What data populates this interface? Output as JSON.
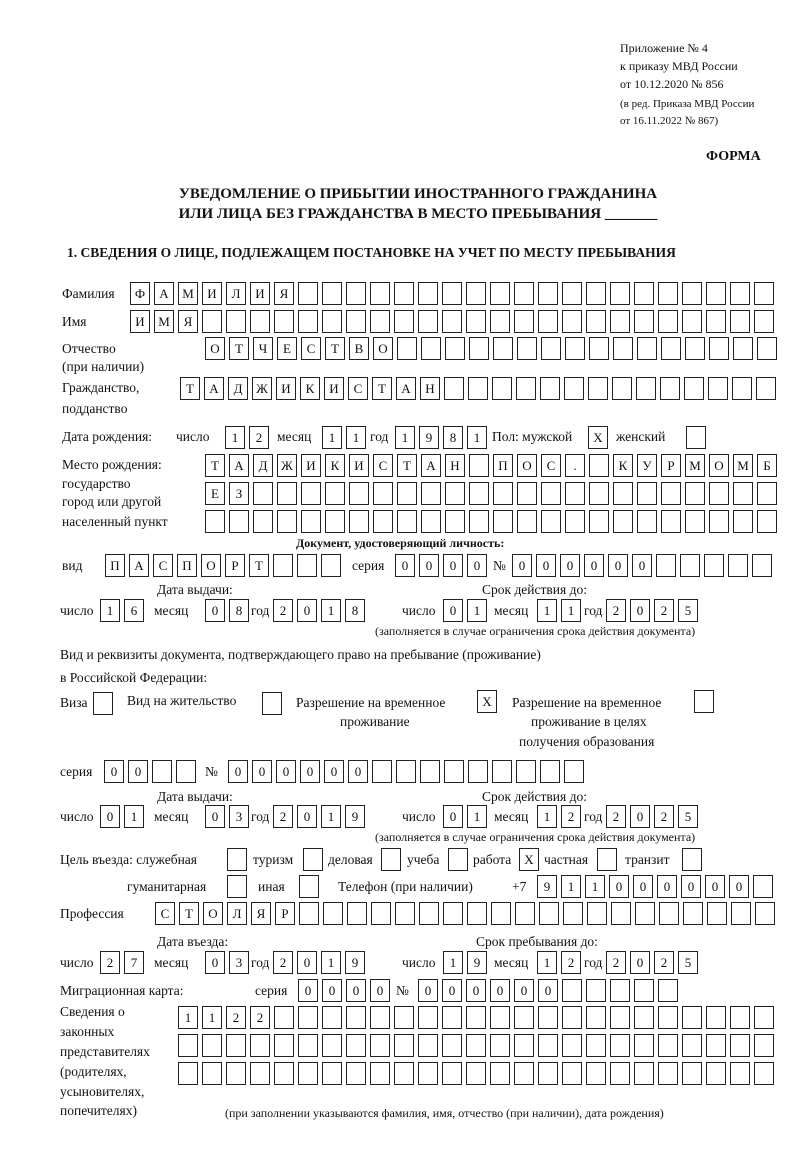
{
  "header": {
    "line1": "Приложение № 4",
    "line2": "к приказу МВД России",
    "line3": "от 10.12.2020 № 856",
    "line4": "(в ред. Приказа МВД России",
    "line5": "от 16.11.2022 № 867)",
    "forma": "ФОРМА"
  },
  "title": {
    "line1": "УВЕДОМЛЕНИЕ О ПРИБЫТИИ ИНОСТРАННОГО ГРАЖДАНИНА",
    "line2": "ИЛИ ЛИЦА БЕЗ ГРАЖДАНСТВА В МЕСТО ПРЕБЫВАНИЯ _______"
  },
  "section1": "1. СВЕДЕНИЯ О ЛИЦЕ, ПОДЛЕЖАЩЕМ ПОСТАНОВКЕ НА УЧЕТ ПО МЕСТУ ПРЕБЫВАНИЯ",
  "labels": {
    "surname": "Фамилия",
    "name": "Имя",
    "patronymic": "Отчество",
    "patronymic2": "(при наличии)",
    "citizenship": "Гражданство,",
    "citizenship2": "подданство",
    "birth_date": "Дата рождения:",
    "day": "число",
    "month": "месяц",
    "year": "год",
    "sex": "Пол: мужской",
    "female": "женский",
    "birthplace1": "Место рождения:",
    "birthplace2": "государство",
    "birthplace3": "город или другой",
    "birthplace4": "населенный пункт",
    "id_doc": "Документ, удостоверяющий личность:",
    "kind": "вид",
    "series": "серия",
    "number": "№",
    "issue_date": "Дата выдачи:",
    "valid_until": "Срок действия до:",
    "valid_note": "(заполняется в случае ограничения срока действия документа)",
    "right_doc1": "Вид и реквизиты документа, подтверждающего право на пребывание (проживание)",
    "right_doc2": "в Российской Федерации:",
    "visa": "Виза",
    "residence": "Вид на жительство",
    "temp_res1": "Разрешение на временное",
    "temp_res2": "проживание",
    "temp_edu1": "Разрешение на временное",
    "temp_edu2": "проживание в целях",
    "temp_edu3": "получения образования",
    "purpose": "Цель въезда: служебная",
    "tourism": "туризм",
    "business": "деловая",
    "study": "учеба",
    "work": "работа",
    "private": "частная",
    "transit": "транзит",
    "humanitarian": "гуманитарная",
    "other": "иная",
    "phone": "Телефон (при наличии)",
    "phone_prefix": "+7",
    "profession": "Профессия",
    "entry_date": "Дата въезда:",
    "stay_until": "Срок пребывания до:",
    "migration_card": "Миграционная карта:",
    "reps1": "Сведения о",
    "reps2": "законных",
    "reps3": "представителях",
    "reps4": "(родителях,",
    "reps5": "усыновителях,",
    "reps6": "попечителях)",
    "reps_note": "(при заполнении указываются фамилия, имя, отчество (при наличии), дата рождения)"
  },
  "fields": {
    "surname": [
      "Ф",
      "А",
      "М",
      "И",
      "Л",
      "И",
      "Я",
      "",
      "",
      "",
      "",
      "",
      "",
      "",
      "",
      "",
      "",
      "",
      "",
      "",
      "",
      "",
      "",
      "",
      "",
      "",
      ""
    ],
    "name": [
      "И",
      "М",
      "Я",
      "",
      "",
      "",
      "",
      "",
      "",
      "",
      "",
      "",
      "",
      "",
      "",
      "",
      "",
      "",
      "",
      "",
      "",
      "",
      "",
      "",
      "",
      "",
      ""
    ],
    "patronymic": [
      "О",
      "Т",
      "Ч",
      "Е",
      "С",
      "Т",
      "В",
      "О",
      "",
      "",
      "",
      "",
      "",
      "",
      "",
      "",
      "",
      "",
      "",
      "",
      "",
      "",
      "",
      ""
    ],
    "citizenship": [
      "Т",
      "А",
      "Д",
      "Ж",
      "И",
      "К",
      "И",
      "С",
      "Т",
      "А",
      "Н",
      "",
      "",
      "",
      "",
      "",
      "",
      "",
      "",
      "",
      "",
      "",
      "",
      "",
      ""
    ],
    "birth_day": [
      "1",
      "2"
    ],
    "birth_month": [
      "1",
      "1"
    ],
    "birth_year": [
      "1",
      "9",
      "8",
      "1"
    ],
    "sex_male": [
      "X"
    ],
    "sex_female": [
      ""
    ],
    "birthplace1": [
      "Т",
      "А",
      "Д",
      "Ж",
      "И",
      "К",
      "И",
      "С",
      "Т",
      "А",
      "Н",
      "",
      "П",
      "О",
      "С",
      ".",
      "",
      "К",
      "У",
      "Р",
      "М",
      "О",
      "М",
      "Б"
    ],
    "birthplace2": [
      "Е",
      "З",
      "",
      "",
      "",
      "",
      "",
      "",
      "",
      "",
      "",
      "",
      "",
      "",
      "",
      "",
      "",
      "",
      "",
      "",
      "",
      "",
      "",
      ""
    ],
    "birthplace3": [
      "",
      "",
      "",
      "",
      "",
      "",
      "",
      "",
      "",
      "",
      "",
      "",
      "",
      "",
      "",
      "",
      "",
      "",
      "",
      "",
      "",
      "",
      "",
      ""
    ],
    "id_kind": [
      "П",
      "А",
      "С",
      "П",
      "О",
      "Р",
      "Т",
      "",
      "",
      ""
    ],
    "id_series": [
      "0",
      "0",
      "0",
      "0"
    ],
    "id_number": [
      "0",
      "0",
      "0",
      "0",
      "0",
      "0",
      "",
      "",
      "",
      "",
      ""
    ],
    "id_issue_day": [
      "1",
      "6"
    ],
    "id_issue_month": [
      "0",
      "8"
    ],
    "id_issue_year": [
      "2",
      "0",
      "1",
      "8"
    ],
    "id_valid_day": [
      "0",
      "1"
    ],
    "id_valid_month": [
      "1",
      "1"
    ],
    "id_valid_year": [
      "2",
      "0",
      "2",
      "5"
    ],
    "visa": [
      ""
    ],
    "residence": [
      ""
    ],
    "temp_res": [
      "X"
    ],
    "temp_edu": [
      ""
    ],
    "rd_series": [
      "0",
      "0",
      "",
      ""
    ],
    "rd_number": [
      "0",
      "0",
      "0",
      "0",
      "0",
      "0",
      "",
      "",
      "",
      "",
      "",
      "",
      "",
      "",
      ""
    ],
    "rd_issue_day": [
      "0",
      "1"
    ],
    "rd_issue_month": [
      "0",
      "3"
    ],
    "rd_issue_year": [
      "2",
      "0",
      "1",
      "9"
    ],
    "rd_valid_day": [
      "0",
      "1"
    ],
    "rd_valid_month": [
      "1",
      "2"
    ],
    "rd_valid_year": [
      "2",
      "0",
      "2",
      "5"
    ],
    "p_official": [
      ""
    ],
    "p_tourism": [
      ""
    ],
    "p_business": [
      ""
    ],
    "p_study": [
      ""
    ],
    "p_work": [
      "X"
    ],
    "p_private": [
      ""
    ],
    "p_transit": [
      ""
    ],
    "p_humanitarian": [
      ""
    ],
    "p_other": [
      ""
    ],
    "phone": [
      "9",
      "1",
      "1",
      "0",
      "0",
      "0",
      "0",
      "0",
      "0",
      ""
    ],
    "profession": [
      "С",
      "Т",
      "О",
      "Л",
      "Я",
      "Р",
      "",
      "",
      "",
      "",
      "",
      "",
      "",
      "",
      "",
      "",
      "",
      "",
      "",
      "",
      "",
      "",
      "",
      "",
      "",
      ""
    ],
    "entry_day": [
      "2",
      "7"
    ],
    "entry_month": [
      "0",
      "3"
    ],
    "entry_year": [
      "2",
      "0",
      "1",
      "9"
    ],
    "stay_day": [
      "1",
      "9"
    ],
    "stay_month": [
      "1",
      "2"
    ],
    "stay_year": [
      "2",
      "0",
      "2",
      "5"
    ],
    "mc_series": [
      "0",
      "0",
      "0",
      "0"
    ],
    "mc_number": [
      "0",
      "0",
      "0",
      "0",
      "0",
      "0",
      "",
      "",
      "",
      "",
      ""
    ],
    "reps1": [
      "1",
      "1",
      "2",
      "2",
      "",
      "",
      "",
      "",
      "",
      "",
      "",
      "",
      "",
      "",
      "",
      "",
      "",
      "",
      "",
      "",
      "",
      "",
      "",
      "",
      ""
    ],
    "reps2": [
      "",
      "",
      "",
      "",
      "",
      "",
      "",
      "",
      "",
      "",
      "",
      "",
      "",
      "",
      "",
      "",
      "",
      "",
      "",
      "",
      "",
      "",
      "",
      "",
      ""
    ],
    "reps3": [
      "",
      "",
      "",
      "",
      "",
      "",
      "",
      "",
      "",
      "",
      "",
      "",
      "",
      "",
      "",
      "",
      "",
      "",
      "",
      "",
      "",
      "",
      "",
      "",
      ""
    ]
  }
}
